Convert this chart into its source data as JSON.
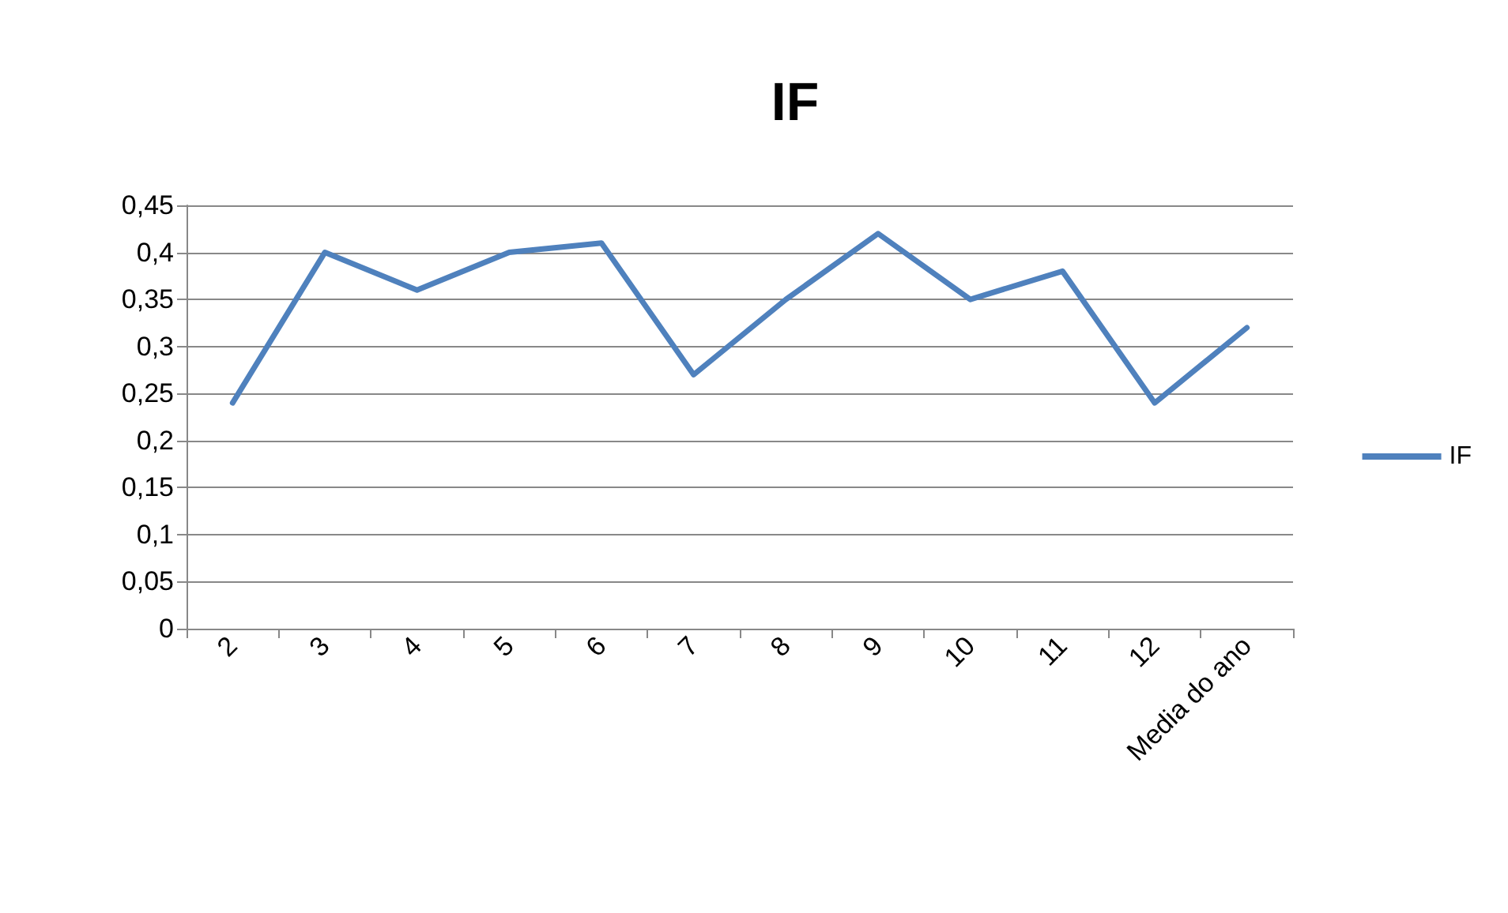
{
  "chart_data": {
    "type": "line",
    "title": "IF",
    "categories": [
      "2",
      "3",
      "4",
      "5",
      "6",
      "7",
      "8",
      "9",
      "10",
      "11",
      "12",
      "Media do ano"
    ],
    "series": [
      {
        "name": "IF",
        "color": "#4f81bd",
        "values": [
          0.24,
          0.4,
          0.36,
          0.4,
          0.41,
          0.27,
          0.35,
          0.42,
          0.35,
          0.38,
          0.24,
          0.32
        ]
      }
    ],
    "ylim": [
      0,
      0.45
    ],
    "yticks": [
      0,
      {
        "value": 0.05,
        "label": "0,05"
      },
      {
        "value": 0.1,
        "label": "0,1"
      },
      {
        "value": 0.15,
        "label": "0,15"
      },
      {
        "value": 0.2,
        "label": "0,2"
      },
      {
        "value": 0.25,
        "label": "0,25"
      },
      {
        "value": 0.3,
        "label": "0,3"
      },
      {
        "value": 0.35,
        "label": "0,35"
      },
      {
        "value": 0.4,
        "label": "0,4"
      },
      {
        "value": 0.45,
        "label": "0,45"
      }
    ],
    "grid": "y",
    "legend": "right",
    "marker": "none",
    "line_style": "solid"
  }
}
